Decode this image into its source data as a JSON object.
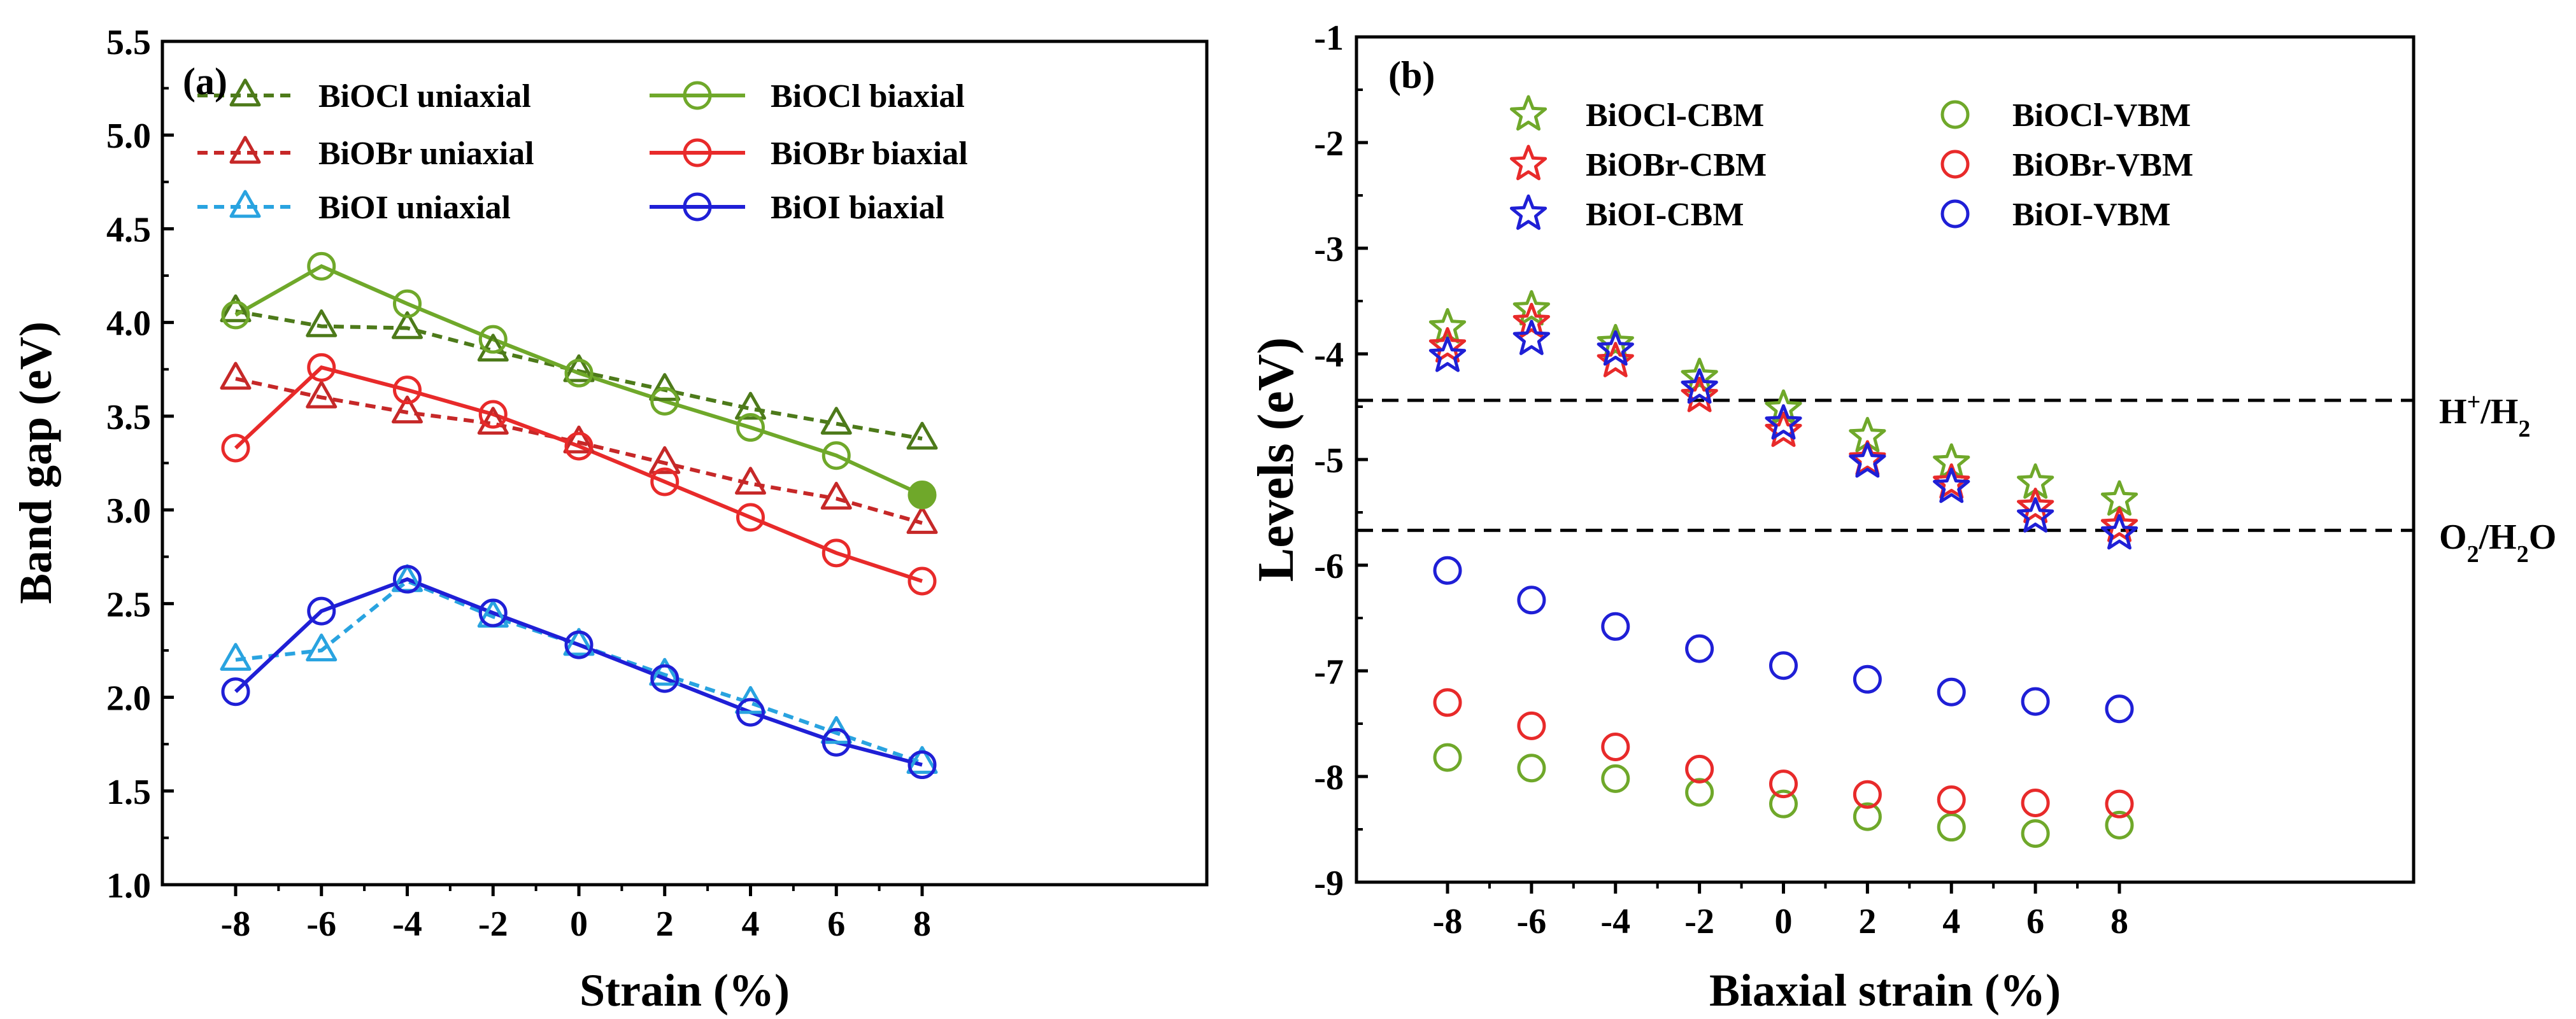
{
  "chart_data": [
    {
      "type": "line",
      "panel_label": "(a)",
      "xlabel": "Strain (%)",
      "ylabel": "Band gap (eV)",
      "x": [
        -8,
        -6,
        -4,
        -2,
        0,
        2,
        4,
        6,
        8
      ],
      "xtick_labels": [
        "-8",
        "-6",
        "-4",
        "-2",
        "0",
        "2",
        "4",
        "6",
        "8"
      ],
      "ylim": [
        1.0,
        5.5
      ],
      "ytick_labels": [
        "1.0",
        "1.5",
        "2.0",
        "2.5",
        "3.0",
        "3.5",
        "4.0",
        "4.5",
        "5.0",
        "5.5"
      ],
      "series": [
        {
          "name": "BiOCl uniaxial",
          "label": "BiOCl uniaxial",
          "color": "#4d7a1a",
          "marker": "triangle",
          "line": "dashed",
          "values": [
            4.06,
            3.98,
            3.97,
            3.85,
            3.74,
            3.64,
            3.54,
            3.46,
            3.38
          ]
        },
        {
          "name": "BiOBr uniaxial",
          "label": "BiOBr uniaxial",
          "color": "#c62828",
          "marker": "triangle",
          "line": "dashed",
          "values": [
            3.7,
            3.6,
            3.52,
            3.46,
            3.36,
            3.25,
            3.14,
            3.06,
            2.93
          ]
        },
        {
          "name": "BiOI uniaxial",
          "label": "BiOI uniaxial",
          "color": "#29a3e0",
          "marker": "triangle",
          "line": "dashed",
          "values": [
            2.2,
            2.25,
            2.62,
            2.43,
            2.28,
            2.12,
            1.97,
            1.81,
            1.65
          ]
        },
        {
          "name": "BiOCl biaxial",
          "label": "BiOCl biaxial",
          "color": "#6fa82a",
          "marker": "circle",
          "line": "solid",
          "values": [
            4.04,
            4.3,
            4.1,
            3.91,
            3.73,
            3.58,
            3.44,
            3.29,
            3.08
          ]
        },
        {
          "name": "BiOBr biaxial",
          "label": "BiOBr biaxial",
          "color": "#e82a2a",
          "marker": "circle",
          "line": "solid",
          "values": [
            3.33,
            3.76,
            3.64,
            3.51,
            3.34,
            3.15,
            2.96,
            2.77,
            2.62
          ]
        },
        {
          "name": "BiOI biaxial",
          "label": "BiOI biaxial",
          "color": "#1f1fd6",
          "marker": "circle",
          "line": "solid",
          "values": [
            2.03,
            2.46,
            2.63,
            2.45,
            2.28,
            2.1,
            1.92,
            1.76,
            1.64
          ]
        }
      ],
      "legend": "top-right"
    },
    {
      "type": "scatter",
      "panel_label": "(b)",
      "xlabel": "Biaxial strain (%)",
      "ylabel": "Levels (eV)",
      "x": [
        -8,
        -6,
        -4,
        -2,
        0,
        2,
        4,
        6,
        8
      ],
      "xtick_labels": [
        "-8",
        "-6",
        "-4",
        "-2",
        "0",
        "2",
        "4",
        "6",
        "8"
      ],
      "ylim": [
        -9,
        -1
      ],
      "ytick_labels": [
        "-9",
        "-8",
        "-7",
        "-6",
        "-5",
        "-4",
        "-3",
        "-2",
        "-1"
      ],
      "series": [
        {
          "name": "BiOCl-CBM",
          "label": "BiOCl-CBM",
          "color": "#6fa82a",
          "marker": "star",
          "values": [
            -3.75,
            -3.58,
            -3.9,
            -4.22,
            -4.52,
            -4.78,
            -5.03,
            -5.22,
            -5.38
          ]
        },
        {
          "name": "BiOBr-CBM",
          "label": "BiOBr-CBM",
          "color": "#e82a2a",
          "marker": "star",
          "values": [
            -3.93,
            -3.7,
            -4.07,
            -4.4,
            -4.73,
            -5.0,
            -5.22,
            -5.45,
            -5.63
          ]
        },
        {
          "name": "BiOI-CBM",
          "label": "BiOI-CBM",
          "color": "#1f1fd6",
          "marker": "star",
          "values": [
            -4.02,
            -3.86,
            -3.96,
            -4.32,
            -4.66,
            -5.02,
            -5.26,
            -5.54,
            -5.7
          ]
        },
        {
          "name": "BiOCl-VBM",
          "label": "BiOCl-VBM",
          "color": "#6fa82a",
          "marker": "circle",
          "values": [
            -7.82,
            -7.92,
            -8.02,
            -8.15,
            -8.26,
            -8.38,
            -8.48,
            -8.54,
            -8.46
          ]
        },
        {
          "name": "BiOBr-VBM",
          "label": "BiOBr-VBM",
          "color": "#e82a2a",
          "marker": "circle",
          "values": [
            -7.3,
            -7.52,
            -7.72,
            -7.93,
            -8.07,
            -8.17,
            -8.22,
            -8.25,
            -8.26
          ]
        },
        {
          "name": "BiOI-VBM",
          "label": "BiOI-VBM",
          "color": "#1f1fd6",
          "marker": "circle",
          "values": [
            -6.05,
            -6.33,
            -6.58,
            -6.79,
            -6.95,
            -7.08,
            -7.2,
            -7.29,
            -7.36
          ]
        }
      ],
      "reference_lines": [
        {
          "name": "H+/H2",
          "value": -4.44,
          "label_main": "H",
          "label_sup": "+",
          "label_mid": "/H",
          "label_sub": "2"
        },
        {
          "name": "O2/H2O",
          "value": -5.67,
          "label_main": "O",
          "label_sub": "2",
          "label_mid": "/H",
          "label_sub2": "2",
          "label_end": "O"
        }
      ],
      "legend": "top"
    }
  ]
}
